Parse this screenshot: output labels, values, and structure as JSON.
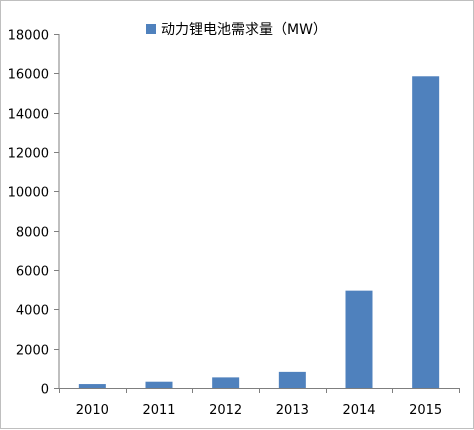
{
  "chart_data": {
    "type": "bar",
    "categories": [
      "2010",
      "2011",
      "2012",
      "2013",
      "2014",
      "2015"
    ],
    "series": [
      {
        "name": "动力锂电池需求量（MW）",
        "values": [
          200,
          320,
          540,
          820,
          4950,
          15850
        ]
      }
    ],
    "ylim": [
      0,
      18000
    ],
    "yticks": [
      0,
      2000,
      4000,
      6000,
      8000,
      10000,
      12000,
      14000,
      16000,
      18000
    ],
    "ytick_labels": [
      "0",
      "2000",
      "4000",
      "6000",
      "8000",
      "10000",
      "12000",
      "14000",
      "16000",
      "18000"
    ],
    "grid": false,
    "legend_position": "top",
    "bar_color": "#4f81bd",
    "axis_color": "#7f7f7f"
  }
}
